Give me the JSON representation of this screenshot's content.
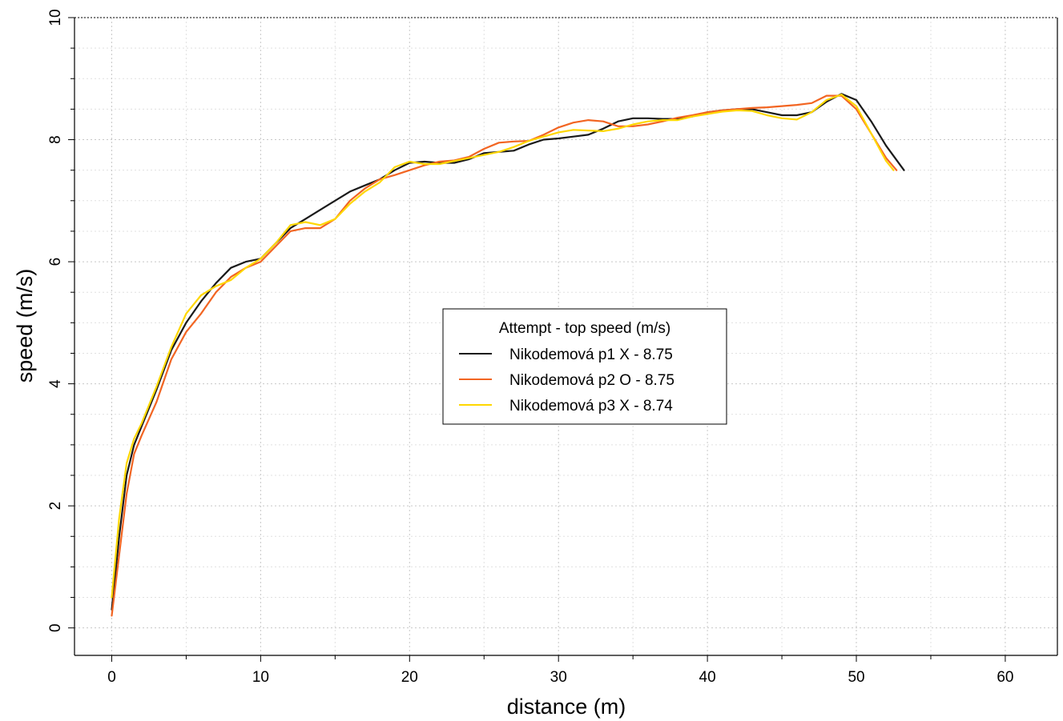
{
  "chart_data": {
    "type": "line",
    "xlabel": "distance (m)",
    "ylabel": "speed (m/s)",
    "xlim": [
      -2.5,
      63.5
    ],
    "ylim": [
      -0.45,
      10
    ],
    "x_ticks": [
      0,
      10,
      20,
      30,
      40,
      50,
      60
    ],
    "y_ticks": [
      0,
      2,
      4,
      6,
      8,
      10
    ],
    "grid": true,
    "legend": {
      "title": "Attempt - top speed (m/s)",
      "placement": "center"
    },
    "series": [
      {
        "name": "Nikodemová p1 X - 8.75",
        "color": "#1a1a1a",
        "x": [
          0,
          0.5,
          1,
          1.5,
          2,
          3,
          4,
          5,
          6,
          7,
          8,
          9,
          10,
          11,
          12,
          13,
          14,
          15,
          16,
          17,
          18,
          19,
          20,
          21,
          22,
          23,
          24,
          25,
          26,
          27,
          28,
          29,
          30,
          31,
          32,
          33,
          34,
          35,
          36,
          37,
          38,
          39,
          40,
          41,
          42,
          43,
          44,
          45,
          46,
          47,
          48,
          49,
          50,
          51,
          52,
          53.2
        ],
        "y": [
          0.3,
          1.5,
          2.5,
          3.0,
          3.3,
          3.9,
          4.55,
          5.0,
          5.35,
          5.65,
          5.9,
          6.0,
          6.05,
          6.3,
          6.55,
          6.7,
          6.85,
          7.0,
          7.15,
          7.25,
          7.35,
          7.5,
          7.62,
          7.64,
          7.62,
          7.62,
          7.68,
          7.78,
          7.8,
          7.82,
          7.92,
          8.0,
          8.02,
          8.05,
          8.08,
          8.18,
          8.3,
          8.35,
          8.35,
          8.34,
          8.34,
          8.38,
          8.45,
          8.48,
          8.5,
          8.5,
          8.45,
          8.4,
          8.4,
          8.45,
          8.62,
          8.75,
          8.65,
          8.3,
          7.9,
          7.5
        ]
      },
      {
        "name": "Nikodemová p2 O - 8.75",
        "color": "#f26522",
        "x": [
          0,
          0.5,
          1,
          1.5,
          2,
          3,
          4,
          5,
          6,
          7,
          8,
          9,
          10,
          11,
          12,
          13,
          14,
          15,
          16,
          17,
          18,
          19,
          20,
          21,
          22,
          23,
          24,
          25,
          26,
          27,
          28,
          29,
          30,
          31,
          32,
          33,
          34,
          35,
          36,
          37,
          38,
          39,
          40,
          41,
          42,
          43,
          44,
          45,
          46,
          47,
          48,
          49,
          50,
          51,
          52,
          52.7
        ],
        "y": [
          0.2,
          1.2,
          2.2,
          2.85,
          3.15,
          3.7,
          4.4,
          4.85,
          5.15,
          5.5,
          5.75,
          5.9,
          6.0,
          6.25,
          6.5,
          6.55,
          6.55,
          6.7,
          7.0,
          7.2,
          7.35,
          7.42,
          7.5,
          7.58,
          7.64,
          7.66,
          7.72,
          7.85,
          7.95,
          7.97,
          7.98,
          8.08,
          8.2,
          8.28,
          8.32,
          8.3,
          8.22,
          8.22,
          8.25,
          8.3,
          8.36,
          8.4,
          8.45,
          8.48,
          8.5,
          8.52,
          8.53,
          8.55,
          8.57,
          8.6,
          8.72,
          8.72,
          8.5,
          8.1,
          7.7,
          7.5
        ]
      },
      {
        "name": "Nikodemová p3 X - 8.74",
        "color": "#ffd700",
        "x": [
          0,
          0.5,
          1,
          1.5,
          2,
          3,
          4,
          5,
          6,
          7,
          8,
          9,
          10,
          11,
          12,
          13,
          14,
          15,
          16,
          17,
          18,
          19,
          20,
          21,
          22,
          23,
          24,
          25,
          26,
          27,
          28,
          29,
          30,
          31,
          32,
          33,
          34,
          35,
          36,
          37,
          38,
          39,
          40,
          41,
          42,
          43,
          44,
          45,
          46,
          47,
          48,
          49,
          50,
          51,
          52,
          52.5
        ],
        "y": [
          0.5,
          1.8,
          2.7,
          3.1,
          3.35,
          3.95,
          4.6,
          5.15,
          5.45,
          5.6,
          5.7,
          5.9,
          6.05,
          6.3,
          6.6,
          6.65,
          6.6,
          6.7,
          6.95,
          7.15,
          7.3,
          7.55,
          7.64,
          7.6,
          7.6,
          7.65,
          7.7,
          7.75,
          7.8,
          7.88,
          7.98,
          8.05,
          8.12,
          8.16,
          8.15,
          8.14,
          8.18,
          8.25,
          8.3,
          8.32,
          8.32,
          8.38,
          8.42,
          8.46,
          8.48,
          8.47,
          8.4,
          8.35,
          8.33,
          8.45,
          8.65,
          8.74,
          8.55,
          8.1,
          7.65,
          7.5
        ]
      }
    ]
  }
}
